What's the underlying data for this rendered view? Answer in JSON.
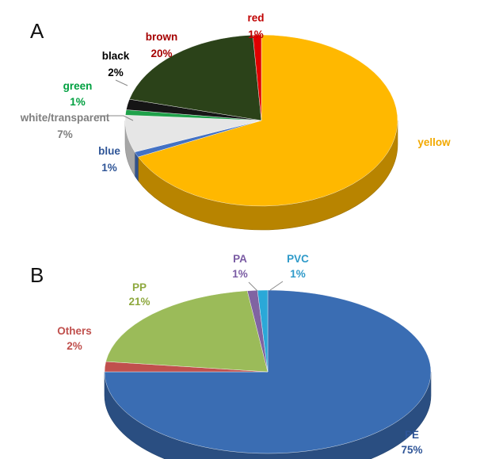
{
  "chart_data": [
    {
      "type": "pie",
      "panel": "A",
      "title": "",
      "categories": [
        "yellow",
        "blue",
        "white/transparent",
        "green",
        "black",
        "brown",
        "red"
      ],
      "values": [
        68,
        1,
        7,
        1,
        2,
        20,
        1
      ],
      "value_labels": [
        "",
        "1%",
        "7%",
        "1%",
        "2%",
        "20%",
        "1%"
      ],
      "colors": [
        "#FFB800",
        "#4472C4",
        "#E6E6E6",
        "#1FA14A",
        "#151515",
        "#2B4219",
        "#E00000"
      ],
      "label_colors": [
        "#F2A900",
        "#2F5597",
        "#7F7F7F",
        "#00A040",
        "#000000",
        "#A50000",
        "#C00000"
      ]
    },
    {
      "type": "pie",
      "panel": "B",
      "title": "",
      "categories": [
        "PE",
        "Others",
        "PP",
        "PA",
        "PVC"
      ],
      "values": [
        75,
        2,
        21,
        1,
        1
      ],
      "value_labels": [
        "75%",
        "2%",
        "21%",
        "1%",
        "1%"
      ],
      "colors": [
        "#3A6DB3",
        "#C0504D",
        "#9BBB59",
        "#8064A2",
        "#2AA8D8"
      ],
      "label_colors": [
        "#2F5597",
        "#C0504D",
        "#8EA83E",
        "#7A5BA3",
        "#2E9AC9"
      ]
    }
  ]
}
